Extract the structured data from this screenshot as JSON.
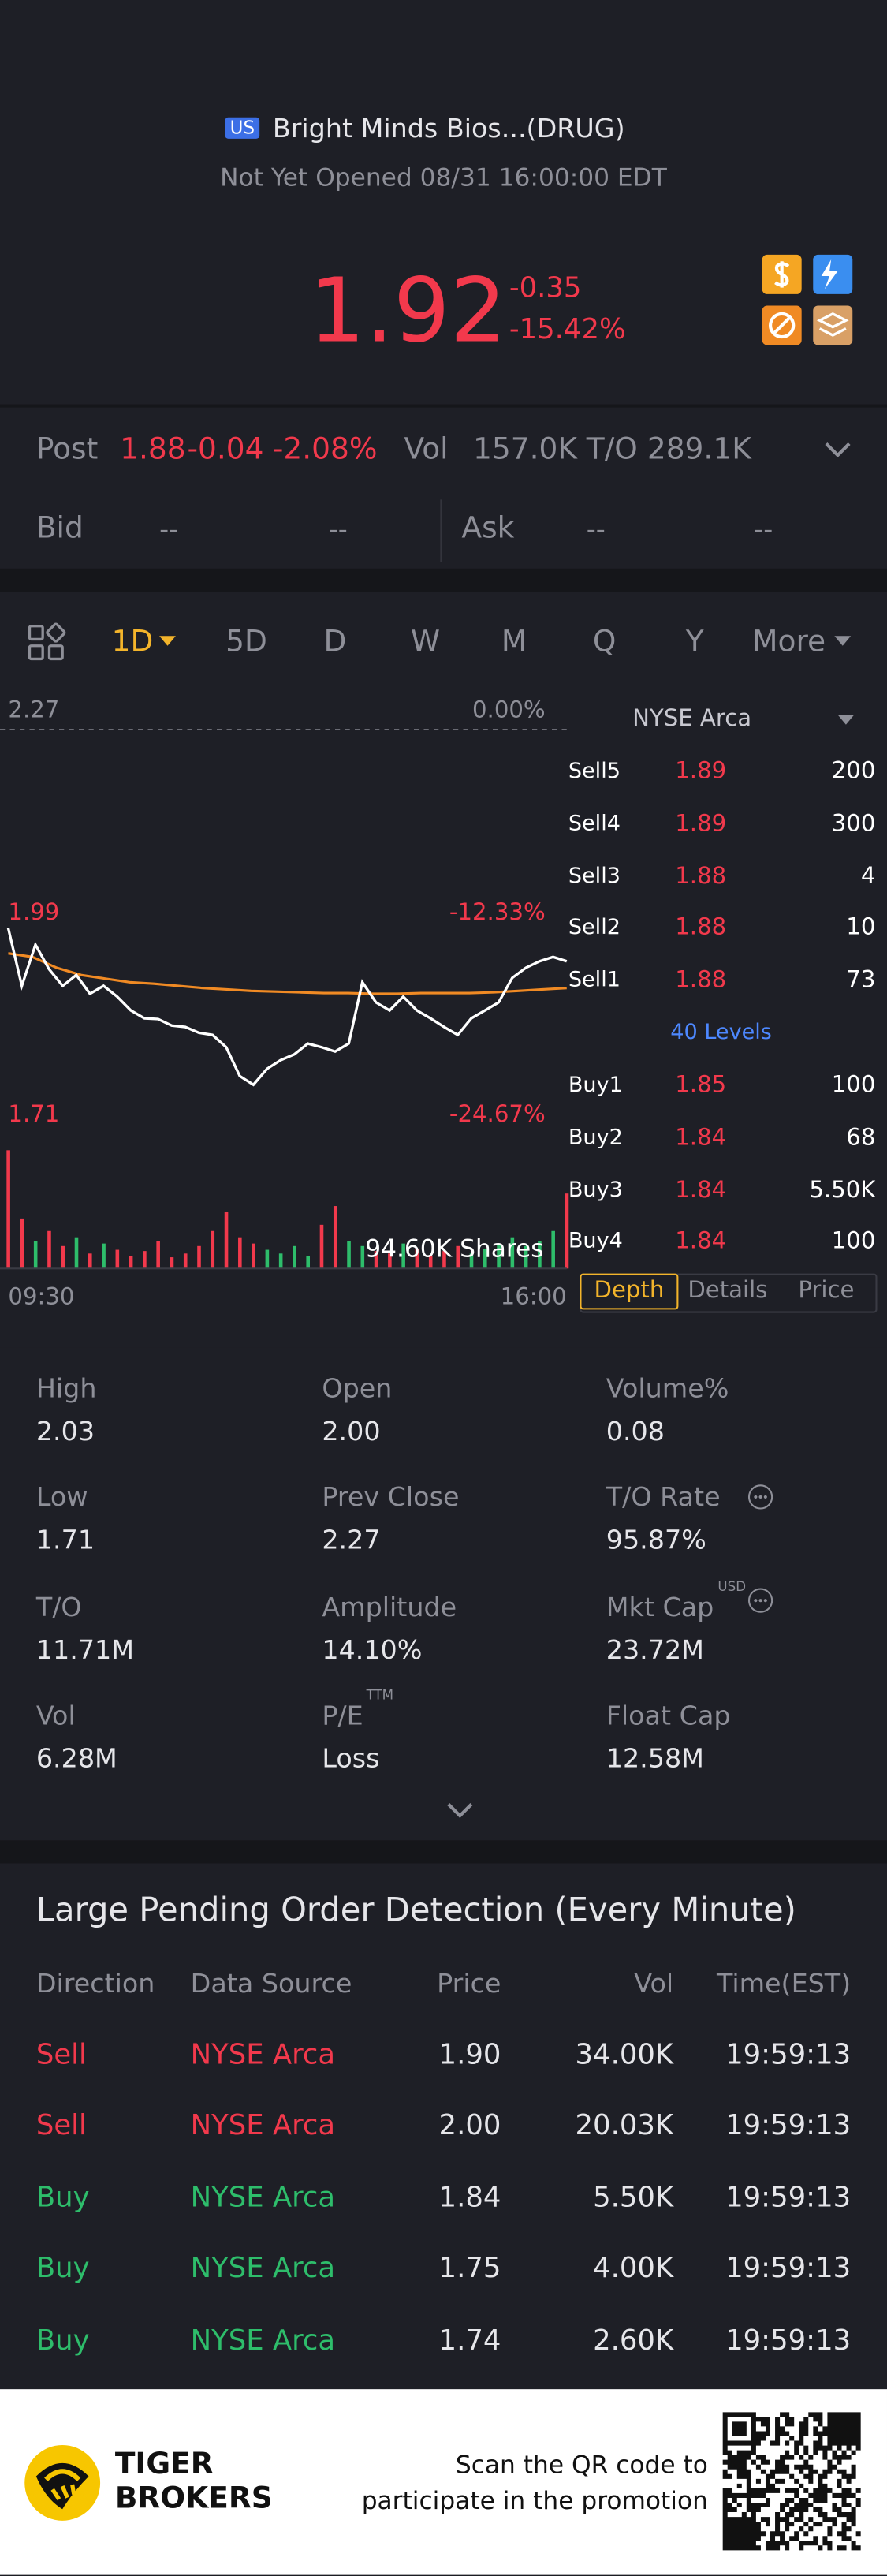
{
  "header": {
    "badge": "US",
    "name": "Bright Minds Bios...(DRUG)",
    "status": "Not Yet Opened 08/31 16:00:00 EDT"
  },
  "quote": {
    "price": "1.92",
    "change": "-0.35",
    "change_pct": "-15.42%"
  },
  "post": {
    "label": "Post",
    "price": "1.88",
    "change": "-0.04",
    "change_pct": "-2.08%",
    "vol_label": "Vol",
    "vol": "157.0K",
    "to_label": "T/O",
    "to": "289.1K"
  },
  "bid_ask": {
    "bid_label": "Bid",
    "bid": [
      "--",
      "--"
    ],
    "ask_label": "Ask",
    "ask": [
      "--",
      "--"
    ]
  },
  "periods": [
    "1D",
    "5D",
    "D",
    "W",
    "M",
    "Q",
    "Y",
    "More"
  ],
  "chart": {
    "levels": [
      {
        "price": 2.27,
        "pct": "0.00%"
      },
      {
        "price": 1.99,
        "pct": "-12.33%"
      },
      {
        "price": 1.71,
        "pct": "-24.67%"
      }
    ],
    "start": "09:30",
    "end": "16:00",
    "prices": [
      1.995,
      1.915,
      1.972,
      1.938,
      1.915,
      1.93,
      1.904,
      1.915,
      1.9,
      1.881,
      1.87,
      1.869,
      1.86,
      1.858,
      1.85,
      1.847,
      1.83,
      1.79,
      1.778,
      1.8,
      1.812,
      1.82,
      1.835,
      1.83,
      1.824,
      1.835,
      1.92,
      1.892,
      1.881,
      1.9,
      1.881,
      1.87,
      1.858,
      1.847,
      1.87,
      1.881,
      1.892,
      1.926,
      1.94,
      1.949,
      1.955,
      1.949
    ],
    "avg": [
      1.96,
      1.955,
      1.94,
      1.93,
      1.925,
      1.92,
      1.918,
      1.915,
      1.912,
      1.91,
      1.908,
      1.907,
      1.906,
      1.905,
      1.905,
      1.904,
      1.904,
      1.905,
      1.905,
      1.905,
      1.906,
      1.908,
      1.91,
      1.912
    ],
    "volumes": [
      94.6,
      40,
      22,
      30,
      18,
      25,
      12,
      20,
      15,
      10,
      14,
      22,
      9,
      12,
      18,
      30,
      45,
      25,
      20,
      15,
      12,
      18,
      10,
      35,
      50,
      22,
      18,
      14,
      12,
      20,
      16,
      10,
      14,
      18,
      12,
      16,
      20,
      25,
      18,
      22,
      30,
      60
    ],
    "volume_max": {
      "value": 94.6,
      "label": "94.60K Shares"
    },
    "line_color": "#ffffff",
    "avg_color": "#f08a24",
    "up_color": "#2ebd6b",
    "down_color": "#f2394c"
  },
  "depth": {
    "venue": "NYSE Arca",
    "sell": [
      {
        "level": "Sell5",
        "price": "1.89",
        "size": "200"
      },
      {
        "level": "Sell4",
        "price": "1.89",
        "size": "300"
      },
      {
        "level": "Sell3",
        "price": "1.88",
        "size": "4"
      },
      {
        "level": "Sell2",
        "price": "1.88",
        "size": "10"
      },
      {
        "level": "Sell1",
        "price": "1.88",
        "size": "73"
      }
    ],
    "levels": "40 Levels",
    "buy": [
      {
        "level": "Buy1",
        "price": "1.85",
        "size": "100"
      },
      {
        "level": "Buy2",
        "price": "1.84",
        "size": "68"
      },
      {
        "level": "Buy3",
        "price": "1.84",
        "size": "5.50K"
      },
      {
        "level": "Buy4",
        "price": "1.84",
        "size": "100"
      }
    ],
    "tabs": [
      "Depth",
      "Details",
      "Price"
    ]
  },
  "stats": [
    {
      "label": "High",
      "value": "2.03"
    },
    {
      "label": "Open",
      "value": "2.00"
    },
    {
      "label": "Volume%",
      "value": "0.08"
    },
    {
      "label": "Low",
      "value": "1.71"
    },
    {
      "label": "Prev Close",
      "value": "2.27"
    },
    {
      "label": "T/O Rate",
      "value": "95.87%"
    },
    {
      "label": "T/O",
      "value": "11.71M"
    },
    {
      "label": "Amplitude",
      "value": "14.10%"
    },
    {
      "label": "Mkt Cap",
      "value": "23.72M",
      "sup": "USD"
    },
    {
      "label": "Vol",
      "value": "6.28M"
    },
    {
      "label": "P/E",
      "value": "Loss",
      "sup": "TTM"
    },
    {
      "label": "Float Cap",
      "value": "12.58M"
    }
  ],
  "orders": {
    "title": "Large Pending Order Detection (Every Minute)",
    "columns": [
      "Direction",
      "Data Source",
      "Price",
      "Vol",
      "Time(EST)"
    ],
    "rows": [
      {
        "cells": [
          "Sell",
          "NYSE Arca",
          "1.90",
          "34.00K",
          "19:59:13"
        ],
        "color": "#f2394c"
      },
      {
        "cells": [
          "Sell",
          "NYSE Arca",
          "2.00",
          "20.03K",
          "19:59:13"
        ],
        "color": "#f2394c"
      },
      {
        "cells": [
          "Buy",
          "NYSE Arca",
          "1.84",
          "5.50K",
          "19:59:13"
        ],
        "color": "#2ebd6b"
      },
      {
        "cells": [
          "Buy",
          "NYSE Arca",
          "1.75",
          "4.00K",
          "19:59:13"
        ],
        "color": "#2ebd6b"
      },
      {
        "cells": [
          "Buy",
          "NYSE Arca",
          "1.74",
          "2.60K",
          "19:59:13"
        ],
        "color": "#2ebd6b"
      }
    ]
  },
  "footer": {
    "brand": [
      "TIGER",
      "BROKERS"
    ],
    "promo": [
      "Scan the QR code to",
      "participate in the promotion"
    ]
  }
}
